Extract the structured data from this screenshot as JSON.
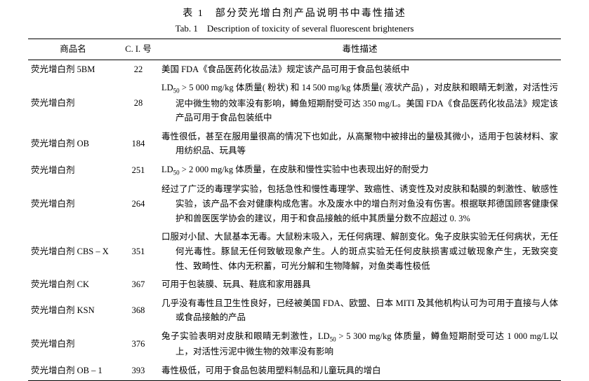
{
  "caption_cn": "表 1　部分荧光增白剂产品说明书中毒性描述",
  "caption_en": "Tab. 1　Description of toxicity of several fluorescent brighteners",
  "headers": {
    "name": "商品名",
    "ci": "C. I. 号",
    "desc": "毒性描述"
  },
  "rows": [
    {
      "name": "荧光增白剂 5BM",
      "ci": "22",
      "desc": "美国 FDA《食品医药化妆品法》规定该产品可用于食品包装纸中"
    },
    {
      "name": "荧光增白剂",
      "ci": "28",
      "desc_html": "LD<sub>50</sub> &gt; 5 000 mg/kg 体质量( 粉状) 和 14 500 mg/kg 体质量( 液状产品) ，对皮肤和眼睛无刺激，对活性污泥中微生物的效率没有影响，鳟鱼短期耐受可达 350 mg/L。美国 FDA《食品医药化妆品法》规定该产品可用于食品包装纸中"
    },
    {
      "name": "荧光增白剂 OB",
      "ci": "184",
      "desc": "毒性很低，甚至在服用量很高的情况下也如此，从高聚物中被排出的量极其微小，适用于包装材料、家用纺织品、玩具等"
    },
    {
      "name": "荧光增白剂",
      "ci": "251",
      "desc_html": "LD<sub>50</sub> &gt; 2 000 mg/kg 体质量，在皮肤和慢性实验中也表现出好的耐受力"
    },
    {
      "name": "荧光增白剂",
      "ci": "264",
      "desc": "经过了广泛的毒理学实验，包括急性和慢性毒理学、致癌性、诱变性及对皮肤和黏膜的刺激性、敏感性实验，该产品不会对健康构成危害。水及废水中的增白剂对鱼没有伤害。根据联邦德国顾客健康保护和兽医医学协会的建议，用于和食品接触的纸中其质量分数不应超过 0. 3%"
    },
    {
      "name": "荧光增白剂 CBS – X",
      "ci": "351",
      "desc": "口服对小鼠、大鼠基本无毒。大鼠粉末吸入，无任何病理、解剖变化。兔子皮肤实验无任何病状，无任何光毒性。豚鼠无任何致敏现象产生。人的斑点实验无任何皮肤损害或过敏现象产生，无致突变性、致畸性、体内无积蓄，可光分解和生物降解，对鱼类毒性极低"
    },
    {
      "name": "荧光增白剂 CK",
      "ci": "367",
      "desc": "可用于包装膜、玩具、鞋底和家用器具"
    },
    {
      "name": "荧光增白剂 KSN",
      "ci": "368",
      "desc": "几乎没有毒性且卫生性良好，已经被美国 FDA、欧盟、日本 MITI 及其他机构认可为可用于直接与人体或食品接触的产品"
    },
    {
      "name": "荧光增白剂",
      "ci": "376",
      "desc_html": "兔子实验表明对皮肤和眼睛无刺激性，LD<sub>50</sub> &gt; 5 300 mg/kg 体质量，鳟鱼短期耐受可达 1 000 mg/L以上，对活性污泥中微生物的效率没有影响"
    },
    {
      "name": "荧光增白剂 OB – 1",
      "ci": "393",
      "desc": "毒性极低，可用于食品包装用塑料制品和儿童玩具的增白"
    }
  ]
}
